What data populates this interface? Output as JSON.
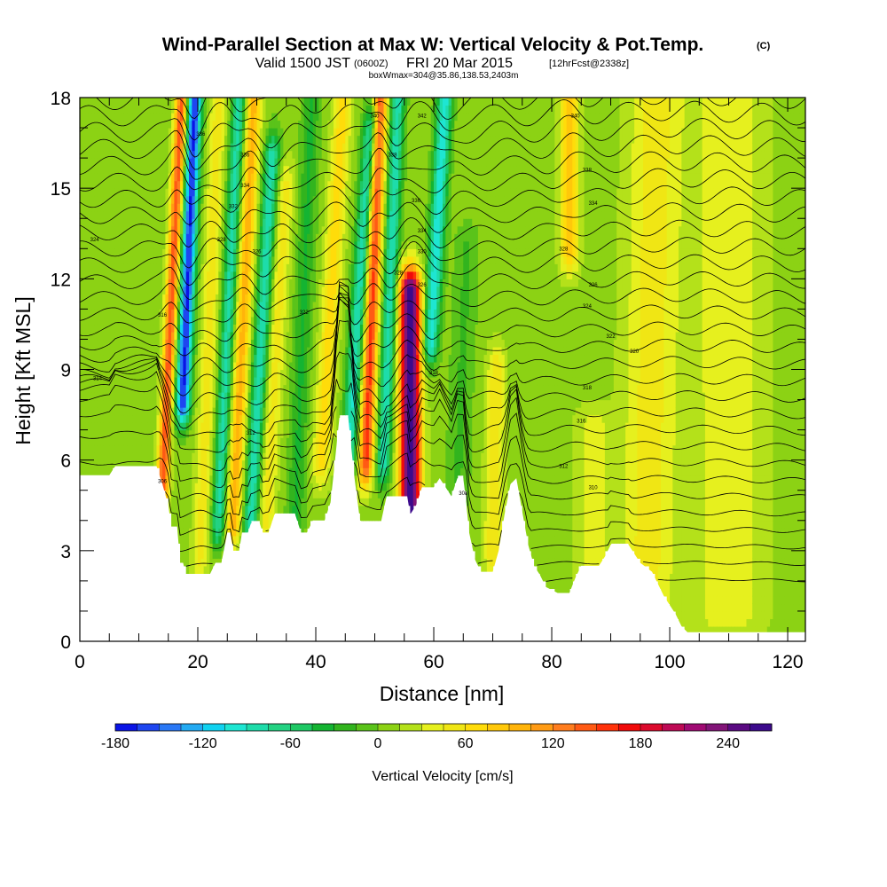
{
  "chart_data": {
    "type": "heatmap",
    "title": "Wind-Parallel Section at Max W: Vertical Velocity & Pot.Temp.",
    "title_mark": "(C)",
    "subtitle": {
      "valid_prefix": "Valid 1500 JST",
      "utc_time": "(0600Z)",
      "date": "FRI 20 Mar 2015",
      "forecast": "[12hrFcst@2338z]"
    },
    "box_info": "boxWmax=304@35.86,138.53,2403m",
    "xlabel": "Distance [nm]",
    "ylabel": "Height [Kft MSL]",
    "xlim": [
      0,
      123
    ],
    "ylim": [
      0,
      18
    ],
    "x_ticks": [
      0,
      20,
      40,
      60,
      80,
      100,
      120
    ],
    "y_ticks": [
      0,
      3,
      6,
      9,
      12,
      15,
      18
    ],
    "x_minor_step": 5,
    "y_minor_step": 1,
    "colorbar": {
      "title": "Vertical Velocity [cm/s]",
      "levels": [
        -180,
        -165,
        -150,
        -135,
        -120,
        -105,
        -90,
        -75,
        -60,
        -45,
        -30,
        -15,
        0,
        15,
        30,
        45,
        60,
        75,
        90,
        105,
        120,
        135,
        150,
        165,
        180,
        195,
        210,
        225,
        240,
        255,
        270
      ],
      "tick_values": [
        -180,
        -120,
        -60,
        0,
        60,
        120,
        180,
        240
      ],
      "colors": [
        "#0a14e6",
        "#1e46f0",
        "#2a78f5",
        "#23aaf2",
        "#10d2f0",
        "#1ee6d2",
        "#1edcaa",
        "#23d282",
        "#1ec864",
        "#14b432",
        "#32b41e",
        "#5ac31a",
        "#8cd214",
        "#b4e11a",
        "#e6f01e",
        "#f0e614",
        "#ffdc0a",
        "#ffc80a",
        "#ffb40a",
        "#ff9b14",
        "#ff7d1e",
        "#ff5a14",
        "#ff320a",
        "#f00a0a",
        "#dc0a2d",
        "#be0a55",
        "#a00a73",
        "#821478",
        "#5a0a82",
        "#3c0a8c"
      ]
    },
    "velocity_features": [
      {
        "x": 14,
        "y0": 5,
        "y1": 18,
        "peak": 140,
        "lean": 0.25,
        "width": 1.0
      },
      {
        "x": 17.5,
        "y0": 8,
        "y1": 18,
        "peak": -175,
        "lean": 0.2,
        "width": 1.2
      },
      {
        "x": 20.5,
        "y0": 3,
        "y1": 18,
        "peak": 45,
        "lean": 0.2,
        "width": 1.4
      },
      {
        "x": 23.5,
        "y0": 4,
        "y1": 18,
        "peak": -90,
        "lean": 0.25,
        "width": 1.2
      },
      {
        "x": 26,
        "y0": 4,
        "y1": 18,
        "peak": 90,
        "lean": 0.25,
        "width": 1.3
      },
      {
        "x": 29,
        "y0": 4,
        "y1": 16,
        "peak": -95,
        "lean": 0.3,
        "width": 1.3
      },
      {
        "x": 31.5,
        "y0": 4,
        "y1": 15,
        "peak": 45,
        "lean": 0.3,
        "width": 1.5
      },
      {
        "x": 36.5,
        "y0": 4,
        "y1": 18,
        "peak": -40,
        "lean": 0.2,
        "width": 1.5
      },
      {
        "x": 41,
        "y0": 6,
        "y1": 18,
        "peak": 60,
        "lean": 0.3,
        "width": 1.5
      },
      {
        "x": 45.5,
        "y0": 6,
        "y1": 17,
        "peak": -100,
        "lean": 0.35,
        "width": 1.3
      },
      {
        "x": 48.5,
        "y0": 6,
        "y1": 18,
        "peak": 150,
        "lean": 0.2,
        "width": 1.2
      },
      {
        "x": 51.5,
        "y0": 6,
        "y1": 18,
        "peak": -95,
        "lean": 0.2,
        "width": 1.2
      },
      {
        "x": 56,
        "y0": 4.5,
        "y1": 11.5,
        "peak": 280,
        "lean": 0.0,
        "width": 1.7
      },
      {
        "x": 59.5,
        "y0": 10,
        "y1": 18,
        "peak": -110,
        "lean": 0.3,
        "width": 1.3
      },
      {
        "x": 64,
        "y0": 5,
        "y1": 13,
        "peak": -25,
        "lean": 0.2,
        "width": 2.0
      },
      {
        "x": 70,
        "y0": 3,
        "y1": 9,
        "peak": 50,
        "lean": 0.1,
        "width": 1.5
      },
      {
        "x": 83,
        "y0": 13,
        "y1": 18,
        "peak": 70,
        "lean": 0.0,
        "width": 1.6
      },
      {
        "x": 96,
        "y0": 1,
        "y1": 18,
        "peak": 45,
        "lean": 0.1,
        "width": 4.5
      },
      {
        "x": 110,
        "y0": 1,
        "y1": 18,
        "peak": 35,
        "lean": 0.0,
        "width": 6.0
      },
      {
        "x": 87,
        "y0": 2,
        "y1": 7,
        "peak": 30,
        "lean": 0.0,
        "width": 3.0
      }
    ],
    "terrain": [
      [
        0,
        5.5
      ],
      [
        5,
        5.5
      ],
      [
        6,
        5.8
      ],
      [
        13,
        5.8
      ],
      [
        14,
        5.2
      ],
      [
        15,
        4.5
      ],
      [
        15.5,
        3.8
      ],
      [
        16.5,
        3.8
      ],
      [
        17,
        2.6
      ],
      [
        17.5,
        2.6
      ],
      [
        18,
        2.2
      ],
      [
        22,
        2.2
      ],
      [
        23,
        2.6
      ],
      [
        24,
        2.6
      ],
      [
        25,
        3.6
      ],
      [
        25.5,
        3.6
      ],
      [
        26,
        3.0
      ],
      [
        27,
        3.0
      ],
      [
        27.5,
        3.6
      ],
      [
        28.5,
        3.6
      ],
      [
        29,
        3.9
      ],
      [
        30.5,
        3.9
      ],
      [
        31,
        3.6
      ],
      [
        32,
        3.6
      ],
      [
        33,
        4.2
      ],
      [
        35,
        4.2
      ],
      [
        36.5,
        4.2
      ],
      [
        37.5,
        3.6
      ],
      [
        38.5,
        3.6
      ],
      [
        39.5,
        4.0
      ],
      [
        41.5,
        4.0
      ],
      [
        42.5,
        4.6
      ],
      [
        43,
        5.5
      ],
      [
        44,
        7.4
      ],
      [
        45.5,
        7.4
      ],
      [
        46.5,
        5.5
      ],
      [
        47.5,
        4.0
      ],
      [
        48.5,
        3.9
      ],
      [
        50,
        3.9
      ],
      [
        51,
        3.9
      ],
      [
        52,
        4.8
      ],
      [
        54,
        4.8
      ],
      [
        55.5,
        4.8
      ],
      [
        56,
        4.2
      ],
      [
        57,
        4.5
      ],
      [
        58,
        5.1
      ],
      [
        60,
        5.1
      ],
      [
        61,
        5.4
      ],
      [
        63,
        4.8
      ],
      [
        64,
        5.4
      ],
      [
        65,
        5.4
      ],
      [
        65.5,
        4.6
      ],
      [
        66,
        3.6
      ],
      [
        67,
        2.7
      ],
      [
        68,
        2.3
      ],
      [
        70,
        2.3
      ],
      [
        71,
        3.0
      ],
      [
        72,
        4.2
      ],
      [
        73,
        5.2
      ],
      [
        74,
        5.4
      ],
      [
        75,
        4.3
      ],
      [
        76,
        3.2
      ],
      [
        77,
        2.5
      ],
      [
        78,
        2.2
      ],
      [
        79,
        1.8
      ],
      [
        81,
        1.6
      ],
      [
        83,
        1.6
      ],
      [
        84,
        2.1
      ],
      [
        85,
        2.5
      ],
      [
        88,
        2.5
      ],
      [
        89,
        2.8
      ],
      [
        90,
        3.2
      ],
      [
        93,
        3.2
      ],
      [
        94,
        2.9
      ],
      [
        95,
        2.6
      ],
      [
        97,
        2.3
      ],
      [
        98,
        1.9
      ],
      [
        99,
        1.5
      ],
      [
        100,
        1.2
      ],
      [
        101,
        0.9
      ],
      [
        102,
        0.5
      ],
      [
        103,
        0.3
      ],
      [
        123,
        0.3
      ]
    ],
    "isentropes": {
      "count": 30,
      "base_height": 2.0,
      "spacing": 0.55
    },
    "contour_labels": [
      {
        "x": 2.5,
        "y": 13.3,
        "text": "324"
      },
      {
        "x": 3,
        "y": 8.7,
        "text": "314"
      },
      {
        "x": 14,
        "y": 10.8,
        "text": "316"
      },
      {
        "x": 14,
        "y": 5.3,
        "text": "306"
      },
      {
        "x": 20.5,
        "y": 16.8,
        "text": "336"
      },
      {
        "x": 28,
        "y": 16.1,
        "text": "336"
      },
      {
        "x": 28,
        "y": 15.1,
        "text": "334"
      },
      {
        "x": 26,
        "y": 14.4,
        "text": "332"
      },
      {
        "x": 24,
        "y": 13.3,
        "text": "328"
      },
      {
        "x": 30,
        "y": 12.9,
        "text": "326"
      },
      {
        "x": 38,
        "y": 10.9,
        "text": "322"
      },
      {
        "x": 29,
        "y": 6.9,
        "text": "312"
      },
      {
        "x": 50,
        "y": 17.4,
        "text": "340"
      },
      {
        "x": 58,
        "y": 17.4,
        "text": "342"
      },
      {
        "x": 53,
        "y": 16.1,
        "text": "338"
      },
      {
        "x": 57,
        "y": 14.6,
        "text": "336"
      },
      {
        "x": 58,
        "y": 13.6,
        "text": "334"
      },
      {
        "x": 58,
        "y": 12.9,
        "text": "330"
      },
      {
        "x": 54,
        "y": 12.2,
        "text": "328"
      },
      {
        "x": 58,
        "y": 11.8,
        "text": "326"
      },
      {
        "x": 60,
        "y": 8.9,
        "text": "318"
      },
      {
        "x": 65,
        "y": 4.9,
        "text": "308"
      },
      {
        "x": 84,
        "y": 17.4,
        "text": "340"
      },
      {
        "x": 86,
        "y": 15.6,
        "text": "338"
      },
      {
        "x": 87,
        "y": 14.5,
        "text": "334"
      },
      {
        "x": 82,
        "y": 13.0,
        "text": "328"
      },
      {
        "x": 87,
        "y": 11.8,
        "text": "326"
      },
      {
        "x": 86,
        "y": 11.1,
        "text": "324"
      },
      {
        "x": 90,
        "y": 10.1,
        "text": "322"
      },
      {
        "x": 94,
        "y": 9.6,
        "text": "320"
      },
      {
        "x": 86,
        "y": 8.4,
        "text": "318"
      },
      {
        "x": 85,
        "y": 7.3,
        "text": "316"
      },
      {
        "x": 82,
        "y": 5.8,
        "text": "312"
      },
      {
        "x": 87,
        "y": 5.1,
        "text": "310"
      }
    ]
  }
}
